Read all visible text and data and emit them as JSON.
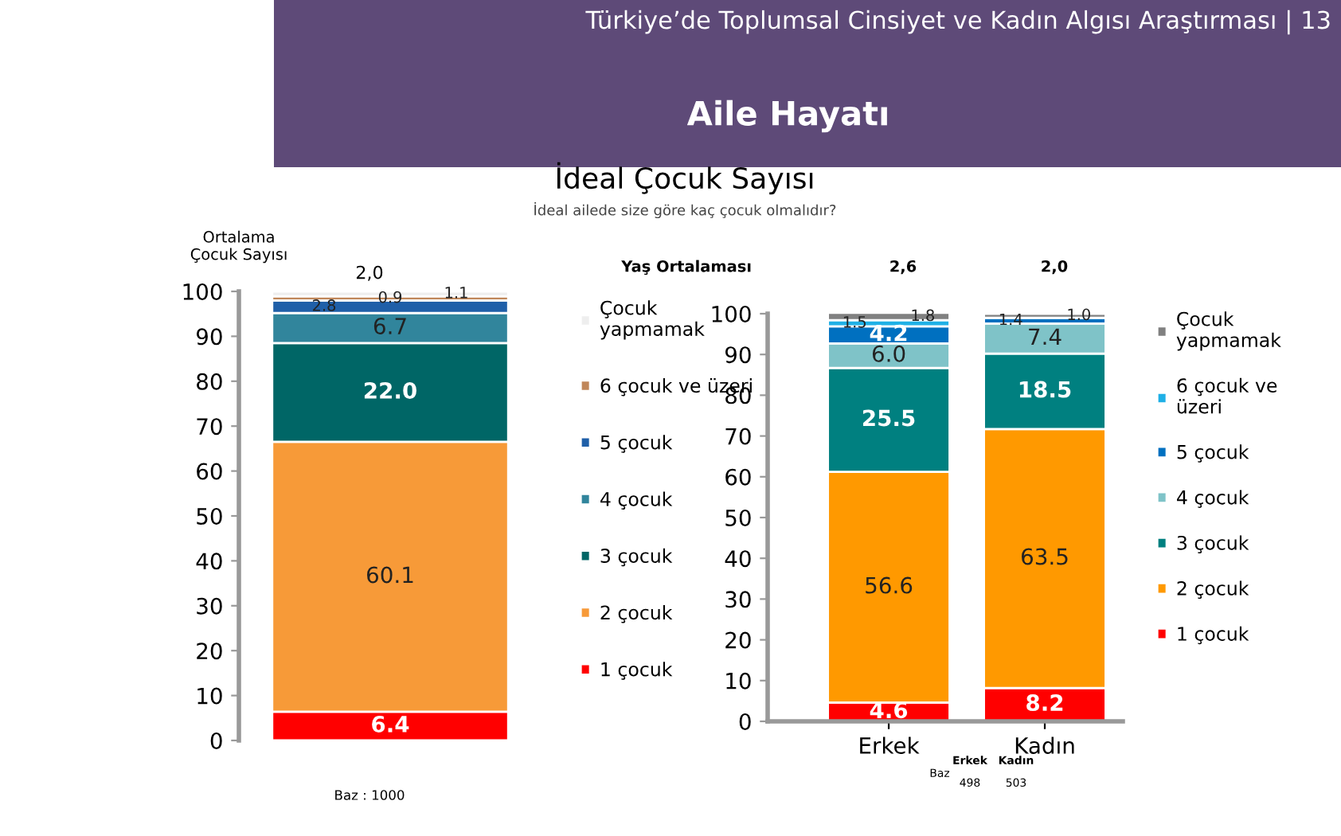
{
  "chart_data": [
    {
      "type": "bar",
      "stacked": true,
      "data_labels": true,
      "ylabel": "Ortalama\nÇocuk Sayısı",
      "categories": [
        null
      ],
      "ylim": [
        0,
        100
      ],
      "yticks": [
        0,
        10,
        20,
        30,
        40,
        50,
        60,
        70,
        80,
        90,
        100
      ],
      "legend": "right",
      "grid": false,
      "series": [
        {
          "name": "1 çocuk",
          "color": "#ff0000",
          "values": [
            6.4
          ],
          "value_labels": [
            "6.4"
          ]
        },
        {
          "name": "2 çocuk",
          "color": "#f79a38",
          "values": [
            60.1
          ],
          "value_labels": [
            "60.1"
          ]
        },
        {
          "name": "3 çocuk",
          "color": "#006666",
          "values": [
            22.0
          ],
          "value_labels": [
            "22.0"
          ]
        },
        {
          "name": "4 çocuk",
          "color": "#31859c",
          "values": [
            6.7
          ],
          "value_labels": [
            "6.7"
          ]
        },
        {
          "name": "5 çocuk",
          "color": "#1f5fa8",
          "values": [
            2.8
          ],
          "value_labels": [
            "2.8"
          ]
        },
        {
          "name": "6 çocuk ve üzeri",
          "color": "#c0875a",
          "values": [
            0.9
          ],
          "value_labels": [
            "0.9"
          ]
        },
        {
          "name": "Çocuk\nyapmamak",
          "color": "#eeeeee",
          "values": [
            1.1
          ],
          "value_labels": [
            "1.1"
          ]
        }
      ],
      "annotations": [
        "Türkiye’de Toplumsal Cinsiyet ve Kadın Algısı Araştırması | 13",
        "Aile Hayatı",
        "İdeal Çocuk Sayısı",
        "İdeal ailede size göre kaç çocuk olmalıdır?",
        "2,0",
        "Baz : 1000"
      ]
    },
    {
      "type": "bar",
      "stacked": true,
      "data_labels": true,
      "categories": [
        "Erkek",
        "Kadın"
      ],
      "ylim": [
        0,
        100
      ],
      "yticks": [
        0,
        10,
        20,
        30,
        40,
        50,
        60,
        70,
        80,
        90,
        100
      ],
      "legend": "right",
      "grid": false,
      "series": [
        {
          "name": "1 çocuk",
          "color": "#ff0000",
          "values": [
            4.6,
            8.2
          ],
          "value_labels": [
            "4.6",
            "8.2"
          ]
        },
        {
          "name": "2 çocuk",
          "color": "#ff9900",
          "values": [
            56.6,
            63.5
          ],
          "value_labels": [
            "56.6",
            "63.5"
          ]
        },
        {
          "name": "3 çocuk",
          "color": "#008080",
          "values": [
            25.5,
            18.5
          ],
          "value_labels": [
            "25.5",
            "18.5"
          ]
        },
        {
          "name": "4 çocuk",
          "color": "#7fc3c8",
          "values": [
            6.0,
            7.4
          ],
          "value_labels": [
            "6.0",
            "7.4"
          ]
        },
        {
          "name": "5 çocuk",
          "color": "#0070c0",
          "values": [
            4.2,
            1.4
          ],
          "value_labels": [
            "4.2",
            "1.4"
          ]
        },
        {
          "name": "6 çocuk ve\nüzeri",
          "color": "#1fb0e6",
          "values": [
            1.5,
            null
          ],
          "value_labels": [
            "1.5",
            null
          ]
        },
        {
          "name": "Çocuk\nyapmamak",
          "color": "#808080",
          "values": [
            1.8,
            1.0
          ],
          "value_labels": [
            "1.8",
            "1.0"
          ]
        }
      ],
      "annotations": [
        "Yaş Ortalaması",
        "2,6",
        "2,0",
        "Baz",
        "Erkek",
        "Kadın",
        "498",
        "503"
      ]
    }
  ]
}
